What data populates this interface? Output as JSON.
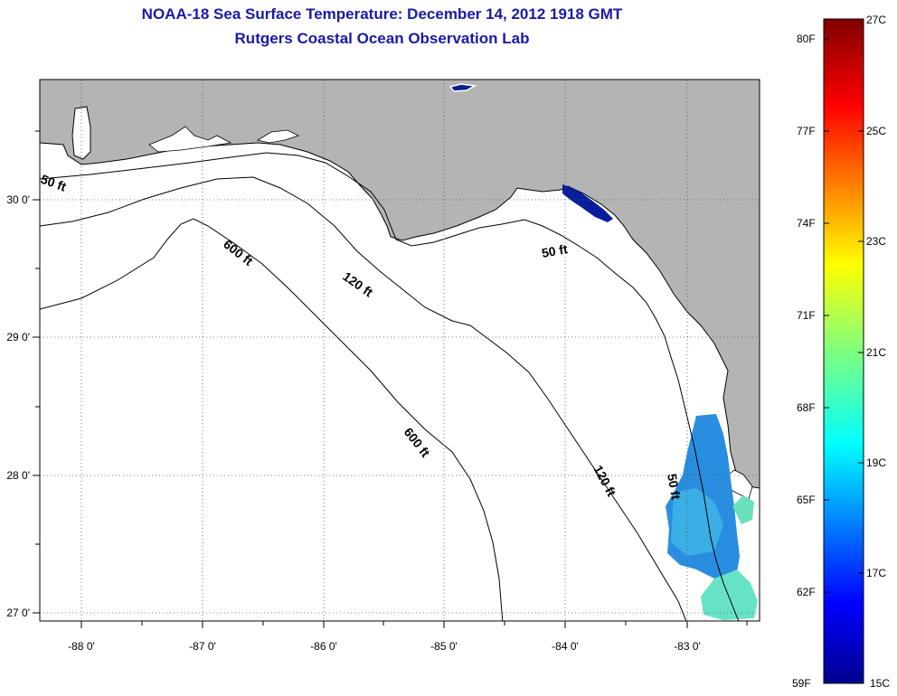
{
  "title": "NOAA-18 Sea Surface Temperature:  December 14, 2012 1918 GMT",
  "subtitle": "Rutgers Coastal Ocean Observation Lab",
  "map": {
    "lon_range": [
      -88.32,
      -82.42
    ],
    "lat_range": [
      26.94,
      30.85
    ],
    "x_ticks": [
      "-88 0'",
      "-87 0'",
      "-86 0'",
      "-85 0'",
      "-84 0'",
      "-83 0'"
    ],
    "y_ticks": [
      "30 0'",
      "29 0'",
      "28 0'",
      "27 0'"
    ],
    "contour_labels": [
      "50 ft",
      "50 ft",
      "50 ft",
      "120 ft",
      "120 ft",
      "600 ft",
      "600 ft"
    ],
    "colors": {
      "land": "#b4b4b4",
      "sea": "#ffffff",
      "frame": "#000000"
    }
  },
  "colorbar": {
    "fahrenheit": [
      "80F",
      "77F",
      "74F",
      "71F",
      "68F",
      "65F",
      "62F",
      "59F"
    ],
    "celsius": [
      "27C",
      "25C",
      "23C",
      "21C",
      "19C",
      "17C",
      "15C"
    ]
  }
}
